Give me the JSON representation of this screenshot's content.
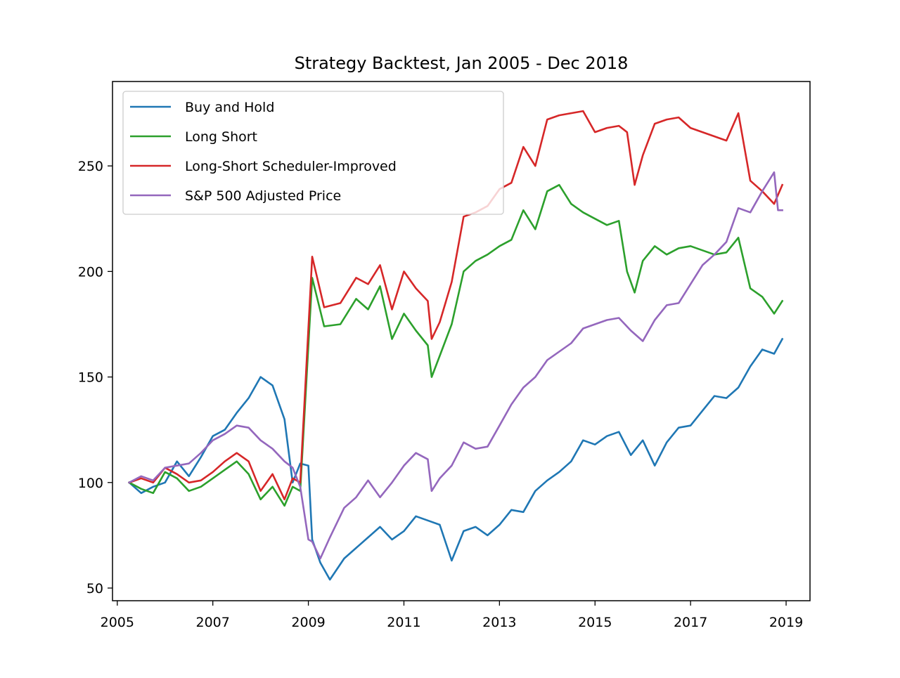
{
  "chart_data": {
    "type": "line",
    "title": "Strategy Backtest, Jan 2005 - Dec 2018",
    "xlabel": "",
    "ylabel": "",
    "xlim": [
      2004.9,
      2019.5
    ],
    "ylim": [
      44,
      290
    ],
    "x_ticks": [
      2005,
      2007,
      2009,
      2011,
      2013,
      2015,
      2017,
      2019
    ],
    "x_tick_labels": [
      "2005",
      "2007",
      "2009",
      "2011",
      "2013",
      "2015",
      "2017",
      "2019"
    ],
    "y_ticks": [
      50,
      100,
      150,
      200,
      250
    ],
    "y_tick_labels": [
      "50",
      "100",
      "150",
      "200",
      "250"
    ],
    "grid": false,
    "legend_position": "top-left",
    "series": [
      {
        "name": "Buy and Hold",
        "color": "#1f77b4",
        "x": [
          2005.25,
          2005.5,
          2005.75,
          2006.0,
          2006.25,
          2006.5,
          2006.75,
          2007.0,
          2007.25,
          2007.5,
          2007.75,
          2008.0,
          2008.25,
          2008.5,
          2008.67,
          2008.83,
          2009.0,
          2009.08,
          2009.25,
          2009.45,
          2009.75,
          2010.0,
          2010.25,
          2010.5,
          2010.75,
          2011.0,
          2011.25,
          2011.5,
          2011.75,
          2012.0,
          2012.25,
          2012.5,
          2012.75,
          2013.0,
          2013.25,
          2013.5,
          2013.75,
          2014.0,
          2014.25,
          2014.5,
          2014.75,
          2015.0,
          2015.25,
          2015.5,
          2015.75,
          2016.0,
          2016.25,
          2016.5,
          2016.75,
          2017.0,
          2017.25,
          2017.5,
          2017.75,
          2018.0,
          2018.25,
          2018.5,
          2018.75,
          2018.92
        ],
        "y": [
          100,
          95,
          98,
          100,
          110,
          103,
          112,
          122,
          125,
          133,
          140,
          150,
          146,
          130,
          100,
          109,
          108,
          73,
          62,
          54,
          64,
          69,
          74,
          79,
          73,
          77,
          84,
          82,
          80,
          63,
          77,
          79,
          75,
          80,
          87,
          86,
          96,
          101,
          105,
          110,
          120,
          118,
          122,
          124,
          113,
          120,
          108,
          119,
          126,
          127,
          134,
          141,
          140,
          145,
          155,
          163,
          161,
          168
        ]
      },
      {
        "name": "Long Short",
        "color": "#2ca02c",
        "x": [
          2005.25,
          2005.5,
          2005.75,
          2006.0,
          2006.25,
          2006.5,
          2006.75,
          2007.0,
          2007.25,
          2007.5,
          2007.75,
          2008.0,
          2008.25,
          2008.5,
          2008.67,
          2008.83,
          2009.08,
          2009.33,
          2009.67,
          2010.0,
          2010.25,
          2010.5,
          2010.75,
          2011.0,
          2011.25,
          2011.5,
          2011.58,
          2011.75,
          2012.0,
          2012.25,
          2012.5,
          2012.75,
          2013.0,
          2013.25,
          2013.5,
          2013.75,
          2014.0,
          2014.25,
          2014.5,
          2014.75,
          2015.0,
          2015.25,
          2015.5,
          2015.67,
          2015.83,
          2016.0,
          2016.25,
          2016.5,
          2016.75,
          2017.0,
          2017.25,
          2017.5,
          2017.75,
          2018.0,
          2018.25,
          2018.5,
          2018.75,
          2018.92
        ],
        "y": [
          100,
          97,
          95,
          105,
          102,
          96,
          98,
          102,
          106,
          110,
          104,
          92,
          98,
          89,
          98,
          96,
          197,
          174,
          175,
          187,
          182,
          193,
          168,
          180,
          172,
          165,
          150,
          160,
          175,
          200,
          205,
          208,
          212,
          215,
          229,
          220,
          238,
          241,
          232,
          228,
          225,
          222,
          224,
          200,
          190,
          205,
          212,
          208,
          211,
          212,
          210,
          208,
          209,
          216,
          192,
          188,
          180,
          186
        ]
      },
      {
        "name": "Long-Short Scheduler-Improved",
        "color": "#d62728",
        "x": [
          2005.25,
          2005.5,
          2005.75,
          2006.0,
          2006.25,
          2006.5,
          2006.75,
          2007.0,
          2007.25,
          2007.5,
          2007.75,
          2008.0,
          2008.25,
          2008.5,
          2008.67,
          2008.83,
          2009.08,
          2009.33,
          2009.67,
          2010.0,
          2010.25,
          2010.5,
          2010.75,
          2011.0,
          2011.25,
          2011.5,
          2011.58,
          2011.75,
          2012.0,
          2012.25,
          2012.5,
          2012.75,
          2013.0,
          2013.25,
          2013.5,
          2013.75,
          2014.0,
          2014.25,
          2014.5,
          2014.75,
          2015.0,
          2015.25,
          2015.5,
          2015.67,
          2015.83,
          2016.0,
          2016.25,
          2016.5,
          2016.75,
          2017.0,
          2017.25,
          2017.5,
          2017.75,
          2018.0,
          2018.25,
          2018.5,
          2018.75,
          2018.92
        ],
        "y": [
          100,
          102,
          100,
          107,
          104,
          100,
          101,
          105,
          110,
          114,
          110,
          96,
          104,
          92,
          102,
          100,
          207,
          183,
          185,
          197,
          194,
          203,
          182,
          200,
          192,
          186,
          168,
          176,
          195,
          226,
          228,
          231,
          239,
          242,
          259,
          250,
          272,
          274,
          275,
          276,
          266,
          268,
          269,
          266,
          241,
          255,
          270,
          272,
          273,
          268,
          266,
          264,
          262,
          275,
          243,
          238,
          232,
          241
        ]
      },
      {
        "name": "S&P 500 Adjusted Price",
        "color": "#9467bd",
        "x": [
          2005.25,
          2005.5,
          2005.75,
          2006.0,
          2006.25,
          2006.5,
          2006.75,
          2007.0,
          2007.25,
          2007.5,
          2007.75,
          2008.0,
          2008.25,
          2008.5,
          2008.67,
          2008.83,
          2009.0,
          2009.08,
          2009.25,
          2009.45,
          2009.75,
          2010.0,
          2010.25,
          2010.5,
          2010.75,
          2011.0,
          2011.25,
          2011.5,
          2011.58,
          2011.75,
          2012.0,
          2012.25,
          2012.5,
          2012.75,
          2013.0,
          2013.25,
          2013.5,
          2013.75,
          2014.0,
          2014.25,
          2014.5,
          2014.75,
          2015.0,
          2015.25,
          2015.5,
          2015.75,
          2016.0,
          2016.25,
          2016.5,
          2016.75,
          2017.0,
          2017.25,
          2017.5,
          2017.75,
          2018.0,
          2018.25,
          2018.5,
          2018.75,
          2018.83,
          2018.92
        ],
        "y": [
          100,
          103,
          101,
          107,
          108,
          109,
          114,
          120,
          123,
          127,
          126,
          120,
          116,
          110,
          107,
          98,
          73,
          72,
          64,
          74,
          88,
          93,
          101,
          93,
          100,
          108,
          114,
          111,
          96,
          102,
          108,
          119,
          116,
          117,
          127,
          137,
          145,
          150,
          158,
          162,
          166,
          173,
          175,
          177,
          178,
          172,
          167,
          177,
          184,
          185,
          194,
          203,
          208,
          214,
          230,
          228,
          238,
          247,
          229,
          229
        ]
      }
    ]
  }
}
